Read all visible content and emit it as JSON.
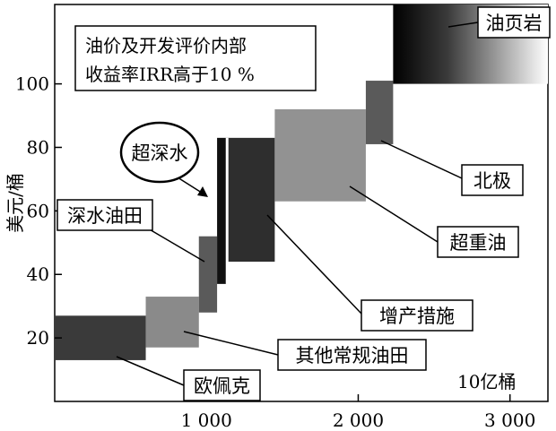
{
  "chart_data": {
    "type": "bar",
    "subtype": "supply-cost-curve",
    "title": "油价及开发评价内部收益率IRR高于10 %",
    "title_lines": [
      "油价及开发评价内部",
      "收益率IRR高于10 %"
    ],
    "xlabel": "10亿桶",
    "ylabel": "美元/桶",
    "xlim": [
      0,
      3250
    ],
    "ylim": [
      0,
      125
    ],
    "x_ticks": [
      1000,
      2000,
      3000
    ],
    "x_tick_labels": [
      "1 000",
      "2 000",
      "3 000"
    ],
    "y_ticks": [
      20,
      40,
      60,
      80,
      100
    ],
    "y_tick_labels": [
      "20",
      "40",
      "60",
      "80",
      "100"
    ],
    "grid": false,
    "legend": "none",
    "segments": [
      {
        "label": "欧佩克",
        "x_start": 0,
        "x_end": 600,
        "y_low": 13,
        "y_high": 27,
        "color": "#3a3a3a",
        "gradient": false
      },
      {
        "label": "其他常规油田",
        "x_start": 600,
        "x_end": 950,
        "y_low": 17,
        "y_high": 33,
        "color": "#8a8a8a",
        "gradient": false
      },
      {
        "label": "深水油田",
        "x_start": 950,
        "x_end": 1070,
        "y_low": 28,
        "y_high": 52,
        "color": "#5a5a5a",
        "gradient": false
      },
      {
        "label": "超深水",
        "x_start": 1070,
        "x_end": 1130,
        "y_low": 37,
        "y_high": 83,
        "color": "#111111",
        "gradient": false
      },
      {
        "label": "增产措施",
        "x_start": 1130,
        "x_end": 1450,
        "y_low": 44,
        "y_high": 83,
        "color": "#2e2e2e",
        "gradient": false
      },
      {
        "label": "超重油",
        "x_start": 1450,
        "x_end": 2050,
        "y_low": 63,
        "y_high": 92,
        "color": "#929292",
        "gradient": false
      },
      {
        "label": "北极",
        "x_start": 2050,
        "x_end": 2230,
        "y_low": 81,
        "y_high": 101,
        "color": "#5a5a5a",
        "gradient": false
      },
      {
        "label": "油页岩",
        "x_start": 2230,
        "x_end": 3250,
        "y_low": 100,
        "y_high": 125,
        "color": "#000000",
        "gradient": true
      }
    ]
  }
}
